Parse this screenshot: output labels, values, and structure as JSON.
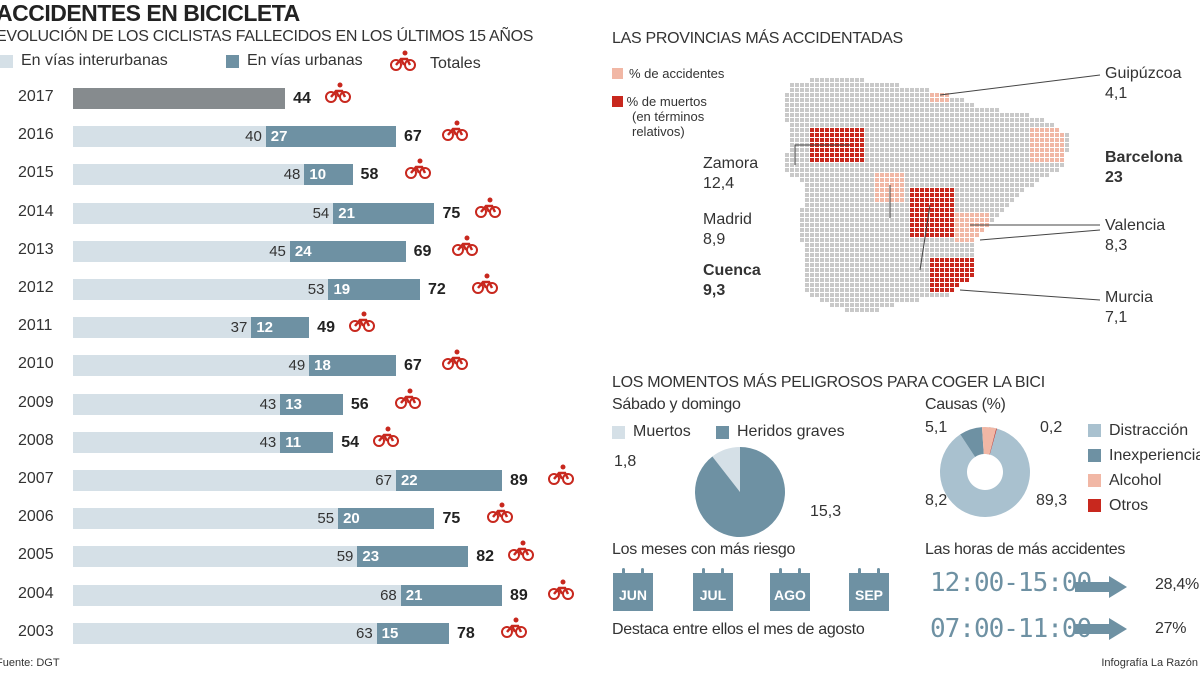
{
  "title": "ACCIDENTES EN BICICLETA",
  "colors": {
    "interurban": "#d5e0e7",
    "urban": "#6e91a3",
    "total2017": "#868b8e",
    "accent": "#c8281e",
    "pink": "#f1b7a5",
    "red": "#c8281e",
    "map_grey": "#c9c9c9"
  },
  "chart_data": [
    {
      "type": "bar",
      "stacked": true,
      "orientation": "horizontal",
      "title": "EVOLUCIÓN DE LOS CICLISTAS FALLECIDOS EN LOS ÚLTIMOS 15 AÑOS",
      "legend": [
        "En vías interurbanas",
        "En vías urbanas",
        "Totales"
      ],
      "categories": [
        "2017",
        "2016",
        "2015",
        "2014",
        "2013",
        "2012",
        "2011",
        "2010",
        "2009",
        "2008",
        "2007",
        "2006",
        "2005",
        "2004",
        "2003"
      ],
      "series": [
        {
          "name": "En vías interurbanas",
          "values": [
            null,
            40,
            48,
            54,
            45,
            53,
            37,
            49,
            43,
            43,
            67,
            55,
            59,
            68,
            63
          ]
        },
        {
          "name": "En vías urbanas",
          "values": [
            null,
            27,
            10,
            21,
            24,
            19,
            12,
            18,
            13,
            11,
            22,
            20,
            23,
            21,
            15
          ]
        },
        {
          "name": "Totales",
          "values": [
            44,
            67,
            58,
            75,
            69,
            72,
            49,
            67,
            56,
            54,
            89,
            75,
            82,
            89,
            78
          ]
        }
      ]
    },
    {
      "type": "pie",
      "title": "Sábado y domingo",
      "legend": [
        "Muertos",
        "Heridos graves"
      ],
      "values": [
        1.8,
        15.3
      ],
      "labels": [
        "1,8",
        "15,3"
      ]
    },
    {
      "type": "pie",
      "donut": true,
      "title": "Causas (%)",
      "legend": [
        "Distracción",
        "Inexperiencia",
        "Alcohol",
        "Otros"
      ],
      "values": [
        89.3,
        8.2,
        5.1,
        0.2
      ],
      "labels": [
        "89,3",
        "8,2",
        "5,1",
        "0,2"
      ]
    }
  ],
  "map": {
    "title": "LAS PROVINCIAS MÁS ACCIDENTADAS",
    "legend_accidents": "% de accidentes",
    "legend_deaths": "% de muertos",
    "legend_deaths_note1": "(en términos",
    "legend_deaths_note2": "relativos)",
    "provinces": [
      {
        "name": "Guipúzcoa",
        "value": "4,1",
        "type": "accidents"
      },
      {
        "name": "Zamora",
        "value": "12,4",
        "type": "deaths"
      },
      {
        "name": "Barcelona",
        "value": "23",
        "type": "accidents"
      },
      {
        "name": "Madrid",
        "value": "8,9",
        "type": "accidents"
      },
      {
        "name": "Valencia",
        "value": "8,3",
        "type": "accidents"
      },
      {
        "name": "Cuenca",
        "value": "9,3",
        "type": "deaths"
      },
      {
        "name": "Murcia",
        "value": "7,1",
        "type": "deaths"
      }
    ]
  },
  "moments": {
    "title": "LOS MOMENTOS MÁS PELIGROSOS PARA COGER LA BICI"
  },
  "months": {
    "title": "Los meses con más riesgo",
    "items": [
      "JUN",
      "JUL",
      "AGO",
      "SEP"
    ],
    "note": "Destaca entre ellos el mes de agosto"
  },
  "hours": {
    "title": "Las horas de más accidentes",
    "items": [
      {
        "range": "12:00-15:00",
        "value": "28,4%"
      },
      {
        "range": "07:00-11:00",
        "value": "27%"
      }
    ]
  },
  "source": "Fuente: DGT",
  "credit": "Infografía La Razón"
}
